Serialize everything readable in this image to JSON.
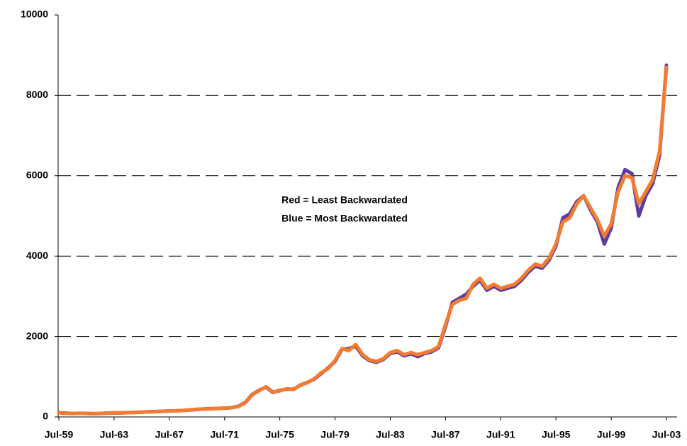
{
  "chart_data": {
    "type": "line",
    "annotations": [
      "Red = Least Backwardated",
      "Blue = Most Backwardated"
    ],
    "categories": [
      "Jul-59",
      null,
      null,
      null,
      null,
      null,
      null,
      null,
      "Jul-63",
      null,
      null,
      null,
      null,
      null,
      null,
      null,
      "Jul-67",
      null,
      null,
      null,
      null,
      null,
      null,
      null,
      "Jul-71",
      null,
      null,
      null,
      null,
      null,
      null,
      null,
      "Jul-75",
      null,
      null,
      null,
      null,
      null,
      null,
      null,
      "Jul-79",
      null,
      null,
      null,
      null,
      null,
      null,
      null,
      "Jul-83",
      null,
      null,
      null,
      null,
      null,
      null,
      null,
      "Jul-87",
      null,
      null,
      null,
      null,
      null,
      null,
      null,
      "Jul-91",
      null,
      null,
      null,
      null,
      null,
      null,
      null,
      "Jul-95",
      null,
      null,
      null,
      null,
      null,
      null,
      null,
      "Jul-99",
      null,
      null,
      null,
      null,
      null,
      null,
      null,
      "Jul-03"
    ],
    "series": [
      {
        "name": "Most Backwardated",
        "color": "#5b3d9e",
        "values": [
          105,
          95,
          85,
          90,
          88,
          82,
          85,
          95,
          100,
          100,
          108,
          112,
          120,
          128,
          132,
          140,
          148,
          152,
          160,
          172,
          188,
          198,
          205,
          212,
          218,
          230,
          265,
          360,
          560,
          660,
          740,
          610,
          660,
          690,
          690,
          790,
          860,
          940,
          1080,
          1220,
          1380,
          1680,
          1700,
          1760,
          1520,
          1400,
          1360,
          1430,
          1580,
          1620,
          1520,
          1570,
          1500,
          1580,
          1620,
          1720,
          2250,
          2850,
          2950,
          3050,
          3250,
          3400,
          3150,
          3250,
          3150,
          3200,
          3250,
          3400,
          3600,
          3750,
          3700,
          3900,
          4250,
          4950,
          5050,
          5350,
          5500,
          5150,
          4850,
          4300,
          4700,
          5700,
          6150,
          6050,
          5000,
          5500,
          5800,
          6500,
          8750
        ]
      },
      {
        "name": "Least Backwardated",
        "color": "#f47b30",
        "values": [
          100,
          90,
          85,
          90,
          85,
          80,
          85,
          95,
          105,
          100,
          105,
          110,
          120,
          125,
          130,
          140,
          150,
          150,
          160,
          175,
          190,
          195,
          200,
          210,
          220,
          230,
          260,
          350,
          550,
          650,
          750,
          620,
          650,
          700,
          680,
          800,
          850,
          950,
          1100,
          1200,
          1400,
          1700,
          1650,
          1800,
          1550,
          1420,
          1380,
          1450,
          1600,
          1650,
          1550,
          1600,
          1550,
          1600,
          1650,
          1750,
          2300,
          2800,
          2900,
          2950,
          3300,
          3450,
          3200,
          3300,
          3200,
          3250,
          3300,
          3450,
          3650,
          3800,
          3750,
          3950,
          4300,
          4850,
          4950,
          5300,
          5500,
          5200,
          4900,
          4500,
          4800,
          5600,
          6000,
          5950,
          5300,
          5600,
          5900,
          6600,
          8700
        ]
      }
    ],
    "ylim": [
      0,
      10000
    ],
    "yticks": [
      0,
      2000,
      4000,
      6000,
      8000,
      10000
    ],
    "grid": true
  }
}
